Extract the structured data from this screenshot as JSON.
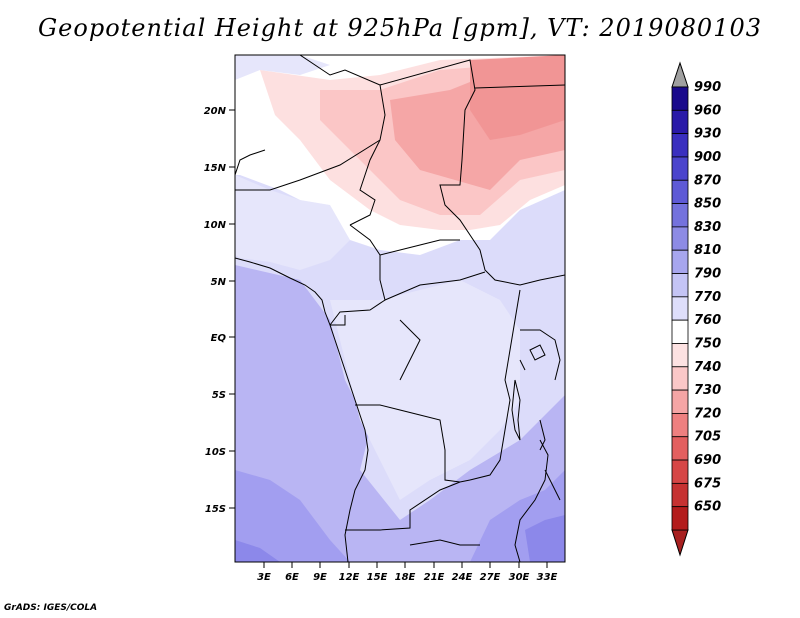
{
  "title": "Geopotential Height at 925hPa [gpm], VT: 2019080103",
  "credit": "GrADS: IGES/COLA",
  "map": {
    "lat_labels": [
      "20N",
      "15N",
      "10N",
      "5N",
      "EQ",
      "5S",
      "10S",
      "15S"
    ],
    "lon_labels": [
      "3E",
      "6E",
      "9E",
      "12E",
      "15E",
      "18E",
      "21E",
      "24E",
      "27E",
      "30E",
      "33E"
    ]
  },
  "colorbar": {
    "levels": [
      "990",
      "960",
      "930",
      "900",
      "870",
      "850",
      "830",
      "810",
      "790",
      "770",
      "760",
      "750",
      "740",
      "730",
      "720",
      "705",
      "690",
      "675",
      "650"
    ],
    "colors": [
      "#1a0a8c",
      "#2a1aa8",
      "#3a2fbf",
      "#4b44cc",
      "#5e5ad6",
      "#7472dd",
      "#8d8be5",
      "#a7a6ee",
      "#c4c4f5",
      "#dedefb",
      "#ffffff",
      "#fde2e2",
      "#fbc8c8",
      "#f5a5a5",
      "#ee8080",
      "#e35f5f",
      "#d64646",
      "#c63232",
      "#b31c1c"
    ]
  }
}
